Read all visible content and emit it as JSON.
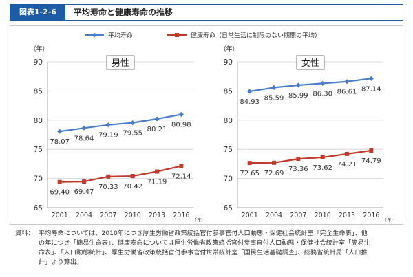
{
  "header": {
    "figure_label": "図表1-2-6",
    "title": "平均寿命と健康寿命の推移"
  },
  "chart_data": {
    "type": "line",
    "legend": [
      {
        "name": "平均寿命",
        "color": "#4a7dc9"
      },
      {
        "name": "健康寿命（日常生活に制限のない期間の平均）",
        "color": "#c0392b"
      }
    ],
    "panels": [
      {
        "title": "男性",
        "y_unit_label": "（年）",
        "x_unit_label": "（年）",
        "x": [
          "2001",
          "2004",
          "2007",
          "2010",
          "2013",
          "2016"
        ],
        "ylim": [
          65,
          90
        ],
        "y_ticks": [
          "65",
          "70",
          "75",
          "80",
          "85",
          "90"
        ],
        "series": [
          {
            "name": "平均寿命",
            "values": [
              78.07,
              78.64,
              79.19,
              79.55,
              80.21,
              80.98
            ],
            "labels": [
              "78.07",
              "78.64",
              "79.19",
              "79.55",
              "80.21",
              "80.98"
            ]
          },
          {
            "name": "健康寿命",
            "values": [
              69.4,
              69.47,
              70.33,
              70.42,
              71.19,
              72.14
            ],
            "labels": [
              "69.40",
              "69.47",
              "70.33",
              "70.42",
              "71.19",
              "72.14"
            ]
          }
        ]
      },
      {
        "title": "女性",
        "y_unit_label": "（年）",
        "x_unit_label": "（年）",
        "x": [
          "2001",
          "2004",
          "2007",
          "2010",
          "2013",
          "2016"
        ],
        "ylim": [
          65,
          90
        ],
        "y_ticks": [
          "65",
          "70",
          "75",
          "80",
          "85",
          "90"
        ],
        "series": [
          {
            "name": "平均寿命",
            "values": [
              84.93,
              85.59,
              85.99,
              86.3,
              86.61,
              87.14
            ],
            "labels": [
              "84.93",
              "85.59",
              "85.99",
              "86.30",
              "86.61",
              "87.14"
            ]
          },
          {
            "name": "健康寿命",
            "values": [
              72.65,
              72.69,
              73.36,
              73.62,
              74.21,
              74.79
            ],
            "labels": [
              "72.65",
              "72.69",
              "73.36",
              "73.62",
              "74.21",
              "74.79"
            ]
          }
        ]
      }
    ]
  },
  "source": {
    "label": "資料：",
    "lines": [
      "平均寿命については、2010年につき厚生労働省政策統括官付参事官付人口動態・保健社会統計室「完全生命表」、他",
      "の年につき「簡易生命表」、健康寿命については厚生労働省政策統括官付参事官付人口動態・保健社会統計室「簡易生",
      "命表」、「人口動態統計」、厚生労働省政策統括官付参事官付世帯統計室「国民生活基礎調査」、総務省統計局「人口推",
      "計」より算出。"
    ]
  }
}
